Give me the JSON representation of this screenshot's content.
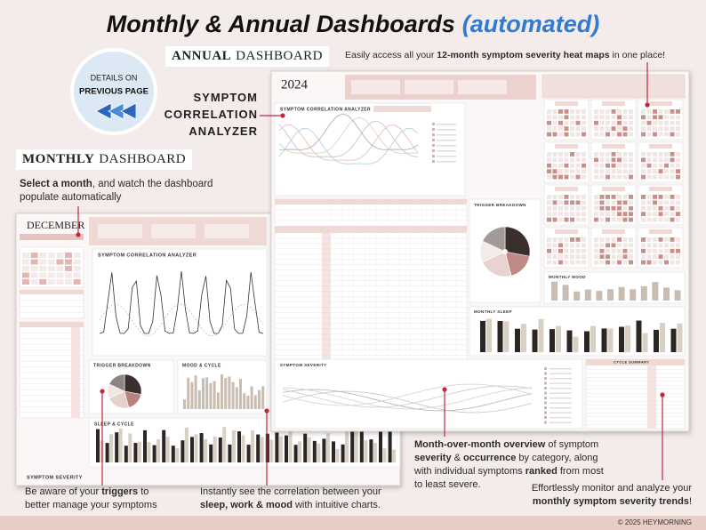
{
  "title": {
    "main": "Monthly & Annual Dashboards",
    "accent": "(automated)"
  },
  "badge": {
    "line1": "DETAILS ON",
    "line2": "PREVIOUS PAGE"
  },
  "annual_label": {
    "bold": "ANNUAL",
    "rest": "DASHBOARD"
  },
  "monthly_label": {
    "bold": "MONTHLY",
    "rest": "DASHBOARD"
  },
  "analyzer_label": [
    "SYMPTOM",
    "CORRELATION",
    "ANALYZER"
  ],
  "callouts": [
    {
      "lines": [
        [
          {
            "t": "Easily access all your "
          },
          {
            "t": "12-month symptom severity heat maps",
            "b": true
          },
          {
            "t": " in one place!"
          }
        ]
      ]
    },
    {
      "lines": [
        [
          {
            "t": "Select a month",
            "b": true
          },
          {
            "t": ", and watch the dashboard"
          }
        ],
        [
          {
            "t": "populate automatically"
          }
        ]
      ]
    },
    {
      "lines": [
        [
          {
            "t": "Be aware of your "
          },
          {
            "t": "triggers",
            "b": true
          },
          {
            "t": " to"
          }
        ],
        [
          {
            "t": "better manage your symptoms"
          }
        ]
      ]
    },
    {
      "lines": [
        [
          {
            "t": "Instantly see the correlation between your"
          }
        ],
        [
          {
            "t": "sleep, work & mood",
            "b": true
          },
          {
            "t": " with intuitive charts."
          }
        ]
      ]
    },
    {
      "lines": [
        [
          {
            "t": "Month-over-month overview",
            "b": true
          },
          {
            "t": " of symptom"
          }
        ],
        [
          {
            "t": "severity",
            "b": true
          },
          {
            "t": " & "
          },
          {
            "t": "occurrence",
            "b": true
          },
          {
            "t": " by category, along"
          }
        ],
        [
          {
            "t": "with individual symptoms "
          },
          {
            "t": "ranked",
            "b": true
          },
          {
            "t": " from most"
          }
        ],
        [
          {
            "t": "to least severe."
          }
        ]
      ]
    },
    {
      "lines": [
        [
          {
            "t": "Effortlessly monitor and analyze your"
          }
        ],
        [
          {
            "t": "monthly symptom severity trends",
            "b": true
          },
          {
            "t": "!"
          }
        ]
      ]
    }
  ],
  "annual_dashboard": {
    "year": "2024",
    "sections": [
      "SYMPTOM CORRELATION ANALYZER",
      "TRIGGER BREAKDOWN",
      "MONTHLY MOOD",
      "MONTHLY SLEEP",
      "SYMPTOM SEVERITY",
      "CYCLE SUMMARY"
    ]
  },
  "monthly_dashboard": {
    "month": "DECEMBER",
    "sections": [
      "SYMPTOM CORRELATION ANALYZER",
      "TRIGGER BREAKDOWN",
      "MOOD & CYCLE",
      "SLEEP & CYCLE",
      "SYMPTOM SEVERITY"
    ]
  },
  "footer": "© 2025 HEYMORNING"
}
